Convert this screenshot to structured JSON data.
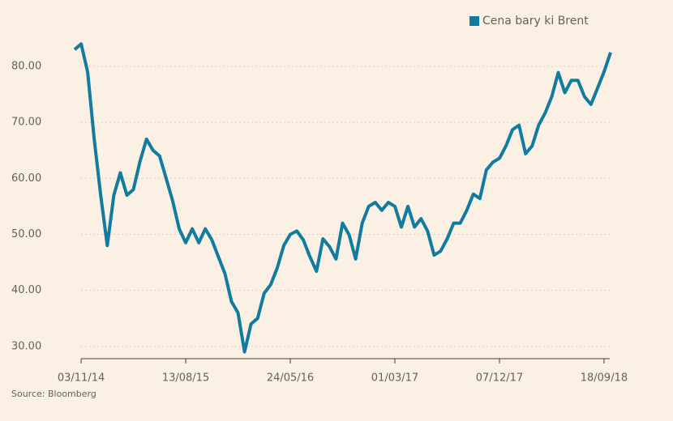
{
  "chart_data": {
    "type": "line",
    "source": "Source: Bloomberg",
    "categories": [
      null,
      "03/11/14",
      null,
      null,
      null,
      null,
      null,
      null,
      null,
      null,
      null,
      null,
      null,
      null,
      null,
      null,
      null,
      "13/08/15",
      null,
      null,
      null,
      null,
      null,
      null,
      null,
      null,
      null,
      null,
      null,
      null,
      null,
      null,
      null,
      "24/05/16",
      null,
      null,
      null,
      null,
      null,
      null,
      null,
      null,
      null,
      null,
      null,
      null,
      null,
      null,
      null,
      "01/03/17",
      null,
      null,
      null,
      null,
      null,
      null,
      null,
      null,
      null,
      null,
      null,
      null,
      null,
      null,
      null,
      "07/12/17",
      null,
      null,
      null,
      null,
      null,
      null,
      null,
      null,
      null,
      null,
      null,
      null,
      null,
      null,
      null,
      "18/09/18",
      null
    ],
    "series": [
      {
        "name": "Cena bary ki Brent",
        "color": "#127ba0",
        "values": [
          83,
          84,
          79,
          67,
          57,
          48,
          57,
          61,
          57,
          58,
          63,
          67,
          65,
          64,
          60,
          56,
          51,
          48.5,
          51,
          48.5,
          51,
          49,
          46,
          43,
          38,
          36,
          29,
          34,
          35,
          39.5,
          41,
          44,
          48,
          50,
          50.6,
          49,
          46,
          43.4,
          49.2,
          47.8,
          45.6,
          52,
          49.9,
          45.6,
          52,
          55,
          55.7,
          54.3,
          55.7,
          55,
          51.3,
          55,
          51.3,
          52.8,
          50.6,
          46.3,
          47,
          49.2,
          52,
          52,
          54.3,
          57.2,
          56.4,
          61.5,
          62.9,
          63.6,
          65.8,
          68.7,
          69.5,
          64.4,
          65.8,
          69.5,
          71.7,
          74.6,
          78.9,
          75.3,
          77.5,
          77.5,
          74.6,
          73.2,
          76.1,
          79,
          82.5
        ]
      }
    ],
    "ylim": [
      27.8,
      86
    ],
    "yticks": [
      {
        "value": 30,
        "label": "30.00"
      },
      {
        "value": 40,
        "label": "40.00"
      },
      {
        "value": 50,
        "label": "50.00"
      },
      {
        "value": 60,
        "label": "60.00"
      },
      {
        "value": 70,
        "label": "70.00"
      },
      {
        "value": 80,
        "label": "80.00"
      }
    ],
    "grid": true,
    "legend": "top-right"
  }
}
